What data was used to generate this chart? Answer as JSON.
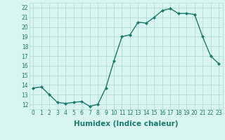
{
  "x": [
    0,
    1,
    2,
    3,
    4,
    5,
    6,
    7,
    8,
    9,
    10,
    11,
    12,
    13,
    14,
    15,
    16,
    17,
    18,
    19,
    20,
    21,
    22,
    23
  ],
  "y": [
    13.7,
    13.8,
    13.0,
    12.2,
    12.1,
    12.2,
    12.3,
    11.8,
    12.0,
    13.7,
    16.5,
    19.0,
    19.2,
    20.5,
    20.4,
    21.0,
    21.7,
    21.9,
    21.4,
    21.4,
    21.3,
    19.0,
    17.0,
    16.2
  ],
  "line_color": "#1a7a6e",
  "marker": "D",
  "marker_size": 2.0,
  "bg_color": "#d9f5ef",
  "grid_color": "#b0ddd5",
  "xlabel": "Humidex (Indice chaleur)",
  "ylim": [
    11.5,
    22.5
  ],
  "xlim": [
    -0.5,
    23.5
  ],
  "yticks": [
    12,
    13,
    14,
    15,
    16,
    17,
    18,
    19,
    20,
    21,
    22
  ],
  "xticks": [
    0,
    1,
    2,
    3,
    4,
    5,
    6,
    7,
    8,
    9,
    10,
    11,
    12,
    13,
    14,
    15,
    16,
    17,
    18,
    19,
    20,
    21,
    22,
    23
  ],
  "tick_label_size": 5.5,
  "xlabel_size": 7.5,
  "line_width": 1.0
}
